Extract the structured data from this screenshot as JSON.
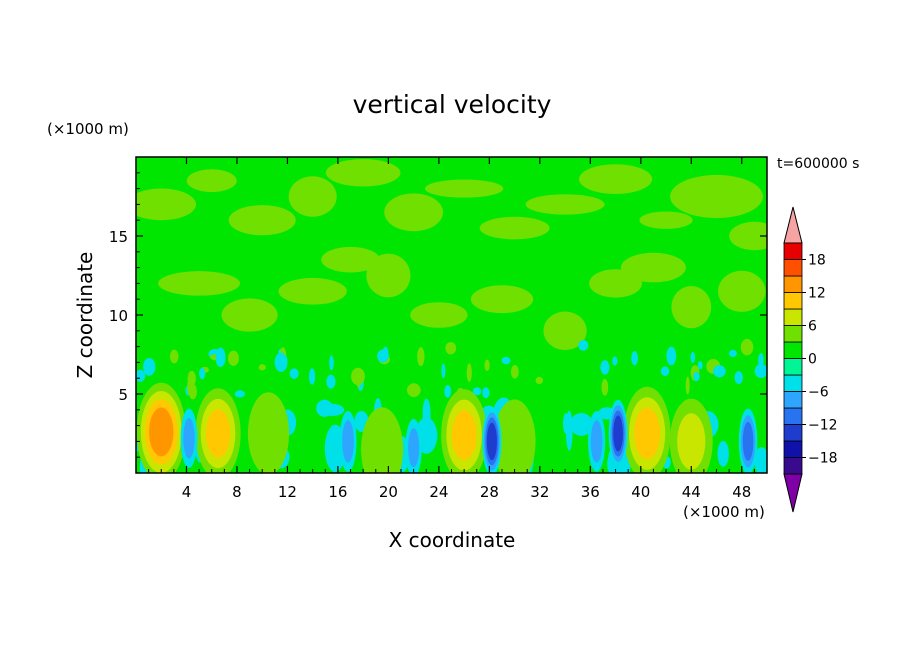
{
  "chart_data": {
    "type": "heatmap",
    "title": "vertical velocity",
    "xlabel": "X coordinate",
    "ylabel": "Z coordinate",
    "x_unit_label": "(×1000 m)",
    "y_unit_label": "(×1000 m)",
    "time_label": "t=600000 s",
    "xlim": [
      0,
      50
    ],
    "ylim": [
      0,
      20
    ],
    "x_ticks": [
      4,
      8,
      12,
      16,
      20,
      24,
      28,
      32,
      36,
      40,
      44,
      48
    ],
    "y_ticks": [
      5,
      10,
      15
    ],
    "colorbar": {
      "levels": [
        -21,
        -18,
        -15,
        -12,
        -9,
        -6,
        -3,
        0,
        3,
        6,
        9,
        12,
        15,
        18,
        21
      ],
      "labeled_ticks": [
        18,
        12,
        6,
        0,
        -6,
        -12,
        -18
      ],
      "colors": [
        "#7f00a6",
        "#3a0a8c",
        "#1010aa",
        "#1e3ccd",
        "#2873f0",
        "#2ea6ff",
        "#00e0e8",
        "#00f595",
        "#00e600",
        "#70e000",
        "#c8e600",
        "#ffc800",
        "#ff9600",
        "#ff5000",
        "#e60000",
        "#f5a3a3"
      ]
    },
    "features": [
      {
        "type": "updraft",
        "x": 2.0,
        "z": 2.6,
        "value": 14
      },
      {
        "type": "updraft",
        "x": 6.5,
        "z": 2.5,
        "value": 9
      },
      {
        "type": "updraft",
        "x": 10.5,
        "z": 2.5,
        "value": 4
      },
      {
        "type": "updraft",
        "x": 19.5,
        "z": 1.5,
        "value": 5
      },
      {
        "type": "updraft",
        "x": 26.0,
        "z": 2.4,
        "value": 10
      },
      {
        "type": "updraft",
        "x": 30.0,
        "z": 2.0,
        "value": 5
      },
      {
        "type": "updraft",
        "x": 40.5,
        "z": 2.5,
        "value": 11
      },
      {
        "type": "updraft",
        "x": 44.0,
        "z": 2.0,
        "value": 6
      },
      {
        "type": "downdraft",
        "x": 28.2,
        "z": 2.0,
        "value": -13
      },
      {
        "type": "downdraft",
        "x": 38.2,
        "z": 2.5,
        "value": -12
      },
      {
        "type": "downdraft",
        "x": 36.5,
        "z": 2.0,
        "value": -8
      },
      {
        "type": "downdraft",
        "x": 48.5,
        "z": 2.0,
        "value": -11
      },
      {
        "type": "downdraft",
        "x": 4.2,
        "z": 2.2,
        "value": -7
      },
      {
        "type": "downdraft",
        "x": 16.8,
        "z": 2.0,
        "value": -8
      },
      {
        "type": "downdraft",
        "x": 22.0,
        "z": 1.6,
        "value": -6
      }
    ]
  }
}
